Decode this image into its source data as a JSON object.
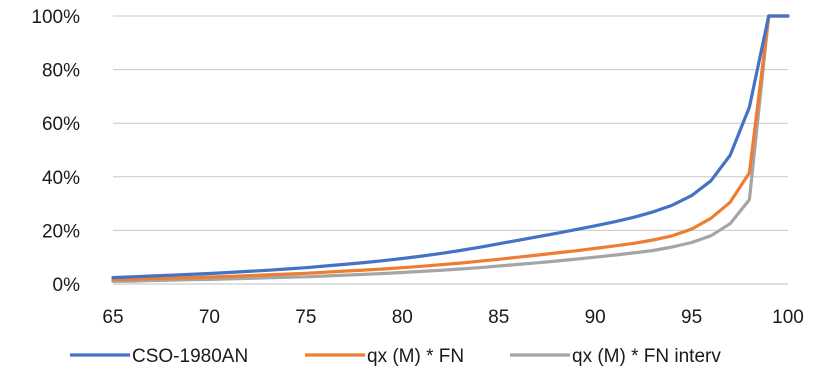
{
  "chart_data": {
    "type": "line",
    "title": "",
    "xlabel": "",
    "ylabel": "",
    "x": [
      65,
      66,
      67,
      68,
      69,
      70,
      71,
      72,
      73,
      74,
      75,
      76,
      77,
      78,
      79,
      80,
      81,
      82,
      83,
      84,
      85,
      86,
      87,
      88,
      89,
      90,
      91,
      92,
      93,
      94,
      95,
      96,
      97,
      98,
      99,
      100
    ],
    "xlim": [
      65,
      100
    ],
    "xticks": [
      65,
      70,
      75,
      80,
      85,
      90,
      95,
      100
    ],
    "ylim": [
      0,
      100
    ],
    "yticks": [
      0,
      20,
      40,
      60,
      80,
      100
    ],
    "yticklabels": [
      "0%",
      "20%",
      "40%",
      "60%",
      "80%",
      "100%"
    ],
    "grid": "horizontal",
    "legend_position": "bottom",
    "series": [
      {
        "name": "CSO-1980AN",
        "color": "#4472C4",
        "values": [
          2.4,
          2.7,
          3.0,
          3.3,
          3.6,
          3.9,
          4.3,
          4.7,
          5.1,
          5.6,
          6.1,
          6.7,
          7.3,
          8.0,
          8.7,
          9.5,
          10.4,
          11.4,
          12.5,
          13.7,
          15.0,
          16.3,
          17.6,
          18.9,
          20.3,
          21.7,
          23.2,
          24.9,
          26.9,
          29.4,
          33.0,
          38.5,
          48.0,
          66.0,
          100.0,
          100.0
        ]
      },
      {
        "name": "qx (M) * FN",
        "color": "#ED7D31",
        "values": [
          1.6,
          1.8,
          2.0,
          2.2,
          2.4,
          2.6,
          2.8,
          3.1,
          3.4,
          3.7,
          4.0,
          4.4,
          4.8,
          5.2,
          5.6,
          6.1,
          6.6,
          7.2,
          7.8,
          8.5,
          9.2,
          10.0,
          10.8,
          11.6,
          12.4,
          13.3,
          14.2,
          15.2,
          16.4,
          18.0,
          20.5,
          24.5,
          30.5,
          41.5,
          100.0,
          100.0
        ]
      },
      {
        "name": "qx (M) * FN interv",
        "color": "#A5A5A5",
        "values": [
          1.0,
          1.1,
          1.3,
          1.4,
          1.6,
          1.7,
          1.9,
          2.1,
          2.3,
          2.5,
          2.7,
          3.0,
          3.3,
          3.6,
          3.9,
          4.3,
          4.7,
          5.1,
          5.6,
          6.1,
          6.7,
          7.3,
          7.9,
          8.6,
          9.3,
          10.0,
          10.8,
          11.6,
          12.5,
          13.8,
          15.5,
          18.0,
          22.5,
          31.5,
          100.0,
          100.0
        ]
      }
    ]
  }
}
